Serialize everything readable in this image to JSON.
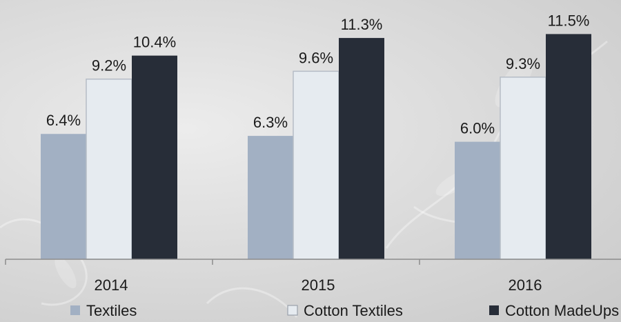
{
  "chart_data": {
    "type": "bar",
    "categories": [
      "2014",
      "2015",
      "2016"
    ],
    "series": [
      {
        "name": "Textiles",
        "values": [
          6.4,
          6.3,
          6.0
        ],
        "labels": [
          "6.4%",
          "6.3%",
          "6.0%"
        ],
        "color": "#a2b0c3"
      },
      {
        "name": "Cotton Textiles",
        "values": [
          9.2,
          9.6,
          9.3
        ],
        "labels": [
          "9.2%",
          "9.6%",
          "9.3%"
        ],
        "color": "#e6ebf0"
      },
      {
        "name": "Cotton MadeUps",
        "values": [
          10.4,
          11.3,
          11.5
        ],
        "labels": [
          "10.4%",
          "11.3%",
          "11.5%"
        ],
        "color": "#272d38"
      }
    ],
    "ylim": [
      0,
      12.5
    ],
    "grid": false,
    "legend_position": "bottom"
  }
}
